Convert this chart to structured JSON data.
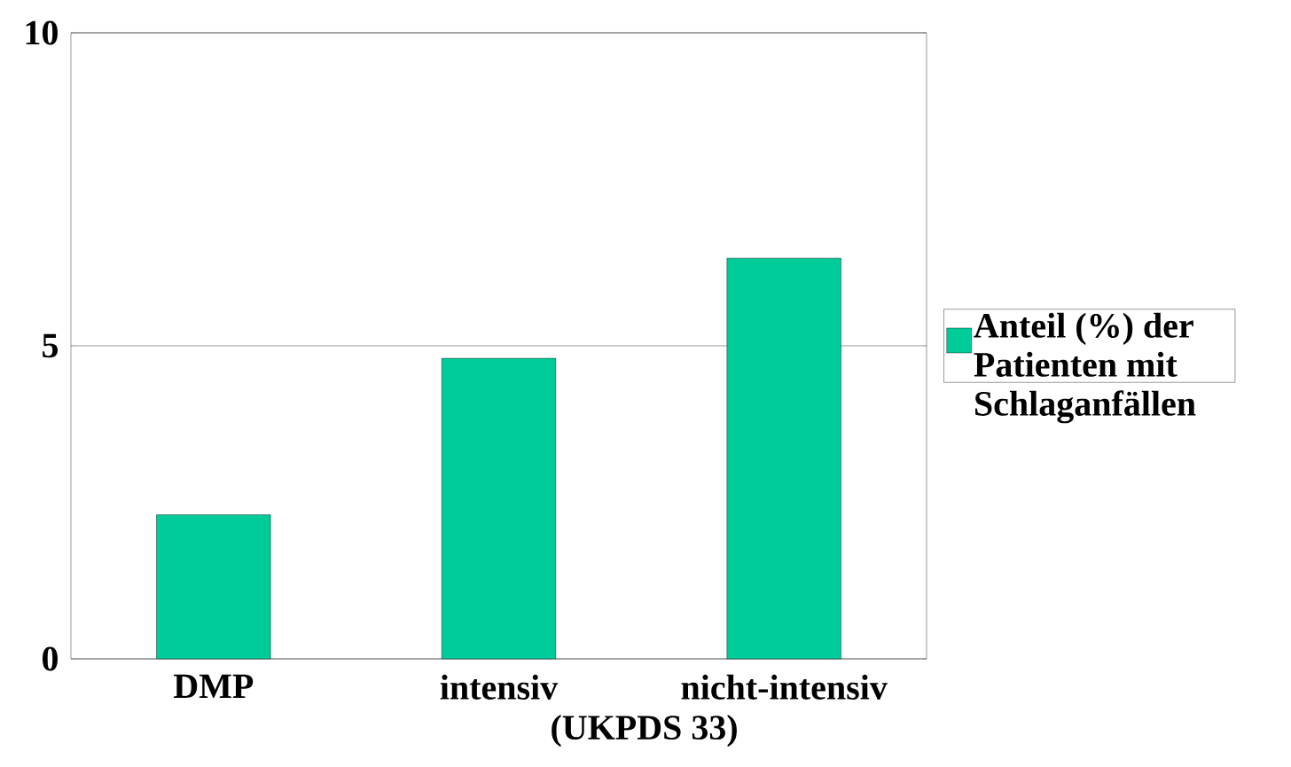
{
  "chart_data": {
    "type": "bar",
    "categories": [
      "DMP",
      "intensiv",
      "nicht-intensiv"
    ],
    "series": [
      {
        "name": "Anteil (%) der Patienten mit Schlaganfällen",
        "color": "#00cc99",
        "values": [
          2.3,
          4.8,
          6.4
        ]
      }
    ],
    "ylim": [
      0,
      10
    ],
    "yticks": [
      0,
      5,
      10
    ],
    "grid": "y",
    "legend": "right",
    "annotations": [
      "(UKPDS 33)"
    ]
  }
}
